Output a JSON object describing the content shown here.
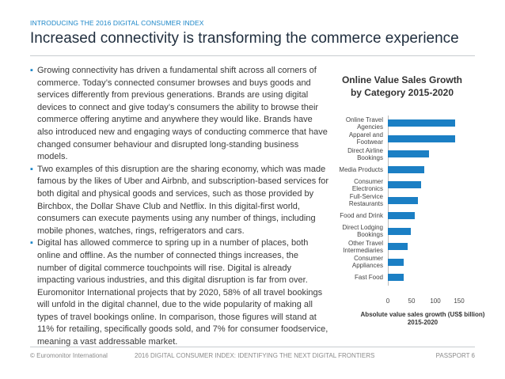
{
  "header": {
    "kicker": "INTRODUCING THE 2016 DIGITAL CONSUMER INDEX",
    "title": "Increased connectivity is transforming the commerce experience"
  },
  "body": {
    "bullets": [
      "Growing connectivity has driven a fundamental shift across all corners of commerce. Today’s connected consumer browses and buys goods and services differently from previous generations. Brands are using digital devices to connect and give today’s consumers the ability to browse their commerce offering anytime and anywhere they would like. Brands have also introduced new and engaging ways of conducting commerce that have changed consumer behaviour and disrupted long-standing business models.",
      "Two examples of this disruption are the sharing economy, which was made famous by the likes of Uber and Airbnb, and subscription-based services for both digital and physical goods and services, such as those provided by Birchbox, the Dollar Shave Club and Netflix. In this digital-first world, consumers can execute payments using any number of things, including mobile phones, watches, rings, refrigerators and cars.",
      "Digital has allowed commerce to spring up in a number of places, both online and offline. As the number of connected things increases, the number of digital commerce touchpoints will rise. Digital is already impacting various industries, and this digital disruption is far from over. Euromonitor International projects that by 2020, 58% of all travel bookings will unfold in the digital channel, due to the wide popularity of making all types of travel bookings online. In comparison, those figures will stand at 11% for retailing, specifically goods sold, and 7% for consumer foodservice, meaning a vast addressable market."
    ]
  },
  "chart_data": {
    "type": "hbar",
    "title": "Online Value Sales Growth by Category 2015-2020",
    "categories": [
      "Online Travel Agencies",
      "Apparel and Footwear",
      "Direct Airline Bookings",
      "Media Products",
      "Consumer Electronics",
      "Full-Service Restaurants",
      "Food and Drink",
      "Direct Lodging Bookings",
      "Other Travel Intermediaries",
      "Consumer Appliances",
      "Fast Food"
    ],
    "values": [
      142,
      142,
      87,
      77,
      70,
      63,
      57,
      48,
      42,
      33,
      33
    ],
    "color": "#1b7fc4",
    "xlim": [
      0,
      150
    ],
    "xticks": [
      0,
      50,
      100,
      150
    ],
    "xlabel": "Absolute value sales growth (US$ billion) 2015-2020"
  },
  "footer": {
    "left": "© Euromonitor International",
    "center": "2016 DIGITAL CONSUMER INDEX: IDENTIFYING THE NEXT DIGITAL FRONTIERS",
    "right": "PASSPORT 6"
  }
}
